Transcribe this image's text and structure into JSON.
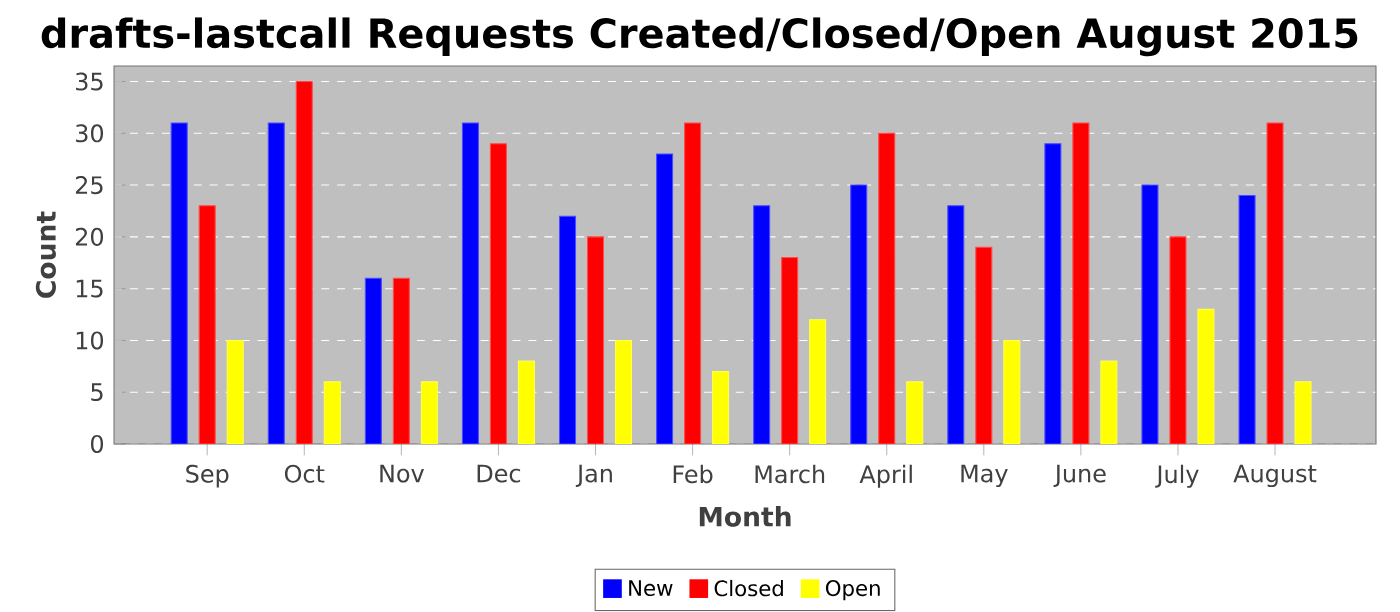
{
  "chart_data": {
    "type": "bar",
    "title": "drafts-lastcall Requests Created/Closed/Open August 2015",
    "xlabel": "Month",
    "ylabel": "Count",
    "categories": [
      "Sep",
      "Oct",
      "Nov",
      "Dec",
      "Jan",
      "Feb",
      "March",
      "April",
      "May",
      "June",
      "July",
      "August"
    ],
    "series": [
      {
        "name": "New",
        "color": "#0000ff",
        "values": [
          31,
          31,
          16,
          31,
          22,
          28,
          23,
          25,
          23,
          29,
          25,
          24
        ]
      },
      {
        "name": "Closed",
        "color": "#ff0000",
        "values": [
          23,
          35,
          16,
          29,
          20,
          31,
          18,
          30,
          19,
          31,
          20,
          31
        ]
      },
      {
        "name": "Open",
        "color": "#ffff00",
        "values": [
          10,
          6,
          6,
          8,
          10,
          7,
          12,
          6,
          10,
          8,
          13,
          6
        ]
      }
    ],
    "ylim": [
      0,
      36.5
    ],
    "yticks": [
      0,
      5,
      10,
      15,
      20,
      25,
      30,
      35
    ],
    "grid": "y",
    "legend": "bottom"
  }
}
